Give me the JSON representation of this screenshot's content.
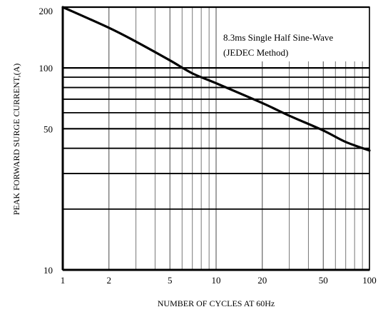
{
  "chart_data": {
    "type": "line",
    "title": "",
    "xlabel": "NUMBER OF CYCLES AT 60Hz",
    "ylabel": "PEAK FORWARD SURGE CURRENT,(A)",
    "x_scale": "log",
    "y_scale": "log",
    "xlim": [
      1,
      100
    ],
    "ylim": [
      10,
      200
    ],
    "x_ticks": [
      1,
      2,
      5,
      10,
      20,
      50,
      100
    ],
    "x_tick_labels": [
      "1",
      "2",
      "5",
      "10",
      "20",
      "50",
      "100"
    ],
    "y_ticks": [
      10,
      50,
      100,
      200
    ],
    "y_tick_labels": [
      "10",
      "50",
      "100",
      "200"
    ],
    "x_grid": [
      1,
      2,
      3,
      4,
      5,
      6,
      7,
      8,
      9,
      10,
      20,
      30,
      40,
      50,
      60,
      70,
      80,
      90,
      100
    ],
    "y_grid": [
      10,
      20,
      30,
      40,
      50,
      60,
      70,
      80,
      90,
      100,
      200
    ],
    "grid": true,
    "annotation": {
      "lines": [
        "8.3ms Single Half Sine-Wave",
        "(JEDEC Method)"
      ],
      "placement": "top-right"
    },
    "series": [
      {
        "x": [
          1,
          2,
          3,
          5,
          7,
          10,
          20,
          30,
          50,
          70,
          100
        ],
        "y": [
          200,
          158,
          135,
          109,
          94,
          84,
          67,
          58,
          49,
          43,
          39
        ]
      }
    ]
  }
}
